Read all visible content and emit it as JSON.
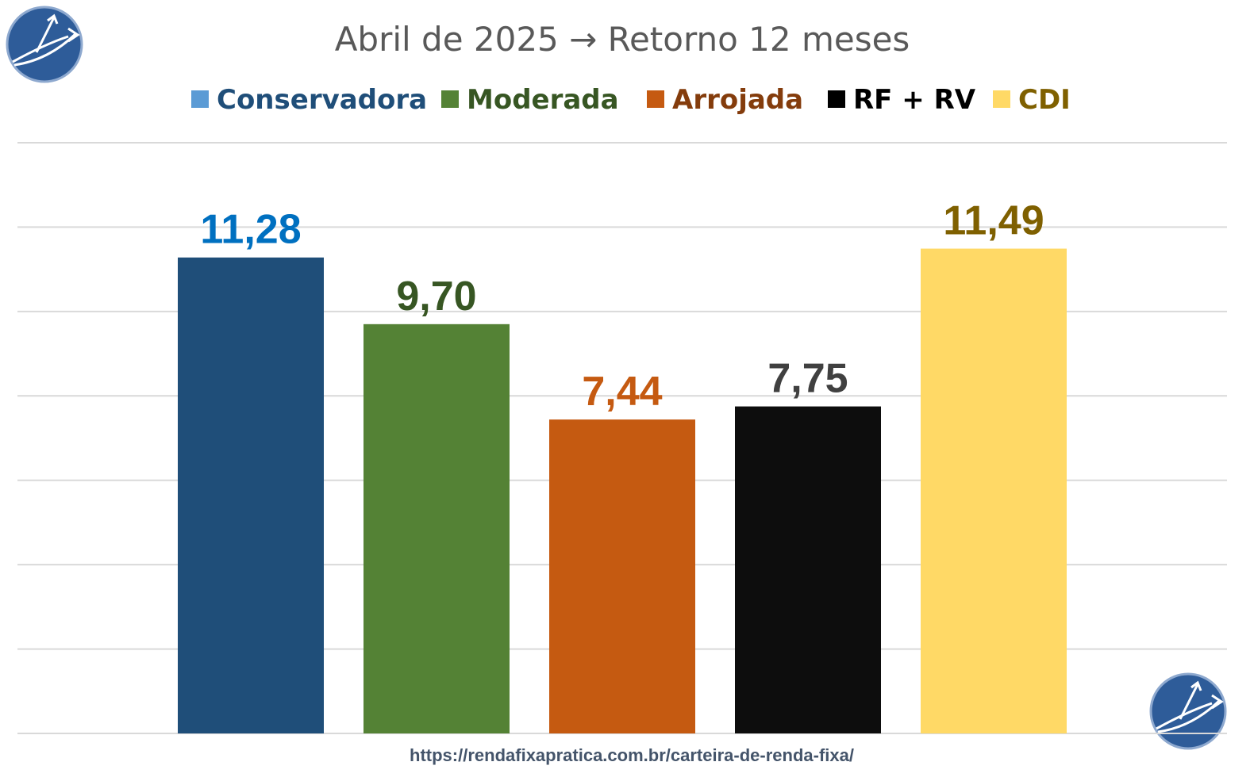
{
  "chart_data": {
    "type": "bar",
    "title": "Abril de 2025 → Retorno 12 meses",
    "categories": [
      "Conservadora",
      "Moderada",
      "Arrojada",
      "RF + RV",
      "CDI"
    ],
    "values": [
      11.28,
      9.7,
      7.44,
      7.75,
      11.49
    ],
    "value_labels": [
      "11,28",
      "9,70",
      "7,44",
      "7,75",
      "11,49"
    ],
    "bar_colors": [
      "#1f4e79",
      "#548235",
      "#c55a11",
      "#0d0d0d",
      "#ffd966"
    ],
    "label_colors": [
      "#0070c0",
      "#375623",
      "#c55a11",
      "#404040",
      "#7f6000"
    ],
    "legend": {
      "placement": "top",
      "items": [
        {
          "label": "Conservadora",
          "swatch": "#5b9bd5",
          "text_color": "#1f4e79"
        },
        {
          "label": "Moderada",
          "swatch": "#548235",
          "text_color": "#375623"
        },
        {
          "label": "Arrojada",
          "swatch": "#c55a11",
          "text_color": "#843c0c"
        },
        {
          "label": "RF + RV",
          "swatch": "#000000",
          "text_color": "#000000"
        },
        {
          "label": "CDI",
          "swatch": "#ffd966",
          "text_color": "#7f6000"
        }
      ]
    },
    "ylim": [
      0,
      14
    ],
    "ytick_step": 2,
    "grid": true,
    "xlabel": "",
    "ylabel": ""
  },
  "footer": {
    "url": "https://rendafixapratica.com.br/carteira-de-renda-fixa/"
  },
  "logo": {
    "icon": "growth-arrow-logo-icon",
    "color": "#2e5c99"
  }
}
